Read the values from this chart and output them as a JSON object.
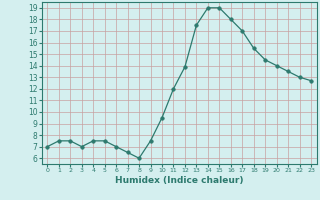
{
  "x": [
    0,
    1,
    2,
    3,
    4,
    5,
    6,
    7,
    8,
    9,
    10,
    11,
    12,
    13,
    14,
    15,
    16,
    17,
    18,
    19,
    20,
    21,
    22,
    23
  ],
  "y": [
    7.0,
    7.5,
    7.5,
    7.0,
    7.5,
    7.5,
    7.0,
    6.5,
    6.0,
    7.5,
    9.5,
    12.0,
    13.9,
    17.5,
    19.0,
    19.0,
    18.0,
    17.0,
    15.5,
    14.5,
    14.0,
    13.5,
    13.0,
    12.7
  ],
  "xlabel": "Humidex (Indice chaleur)",
  "line_color": "#2d7a6e",
  "marker_size": 2.5,
  "bg_color": "#d4efef",
  "grid_color": "#b0d8d8",
  "xlim": [
    -0.5,
    23.5
  ],
  "ylim": [
    5.5,
    19.5
  ],
  "yticks": [
    6,
    7,
    8,
    9,
    10,
    11,
    12,
    13,
    14,
    15,
    16,
    17,
    18,
    19
  ],
  "xtick_labels": [
    "0",
    "1",
    "2",
    "3",
    "4",
    "5",
    "6",
    "7",
    "8",
    "9",
    "10",
    "11",
    "12",
    "13",
    "14",
    "15",
    "16",
    "17",
    "18",
    "19",
    "20",
    "21",
    "22",
    "23"
  ],
  "tick_color": "#2d7a6e",
  "label_color": "#2d7a6e",
  "spine_color": "#2d7a6e",
  "ytick_fontsize": 5.5,
  "xtick_fontsize": 4.5,
  "xlabel_fontsize": 6.5
}
